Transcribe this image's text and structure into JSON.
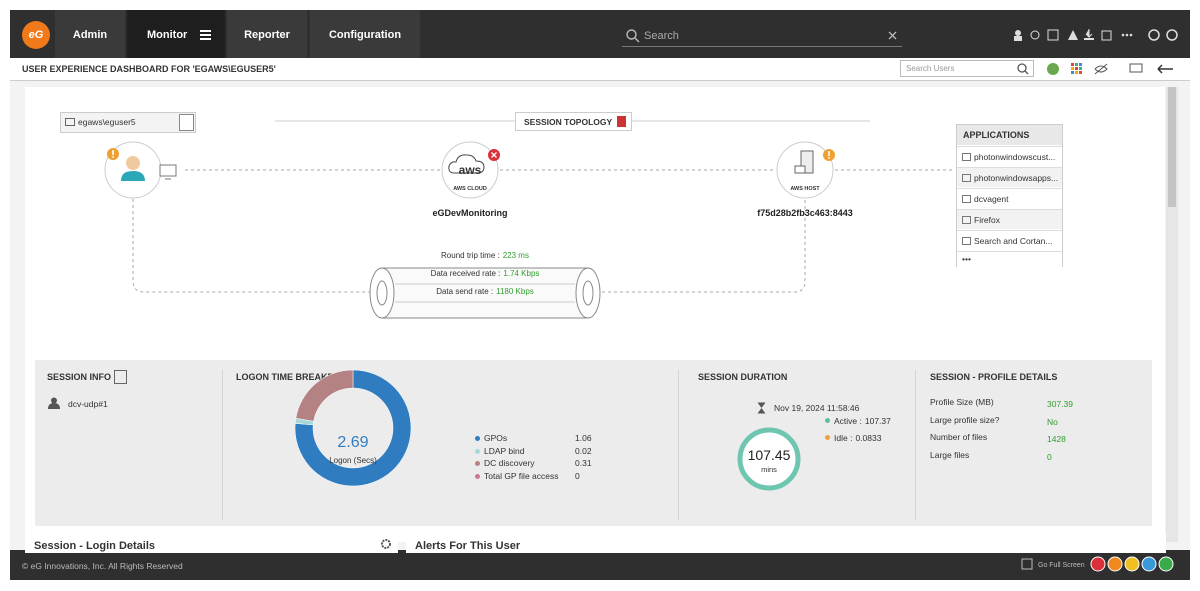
{
  "nav": {
    "logo": "eG",
    "tabs": [
      "Admin",
      "Monitor",
      "Reporter",
      "Configuration"
    ],
    "search_placeholder": "Search"
  },
  "header": {
    "title": "USER EXPERIENCE DASHBOARD FOR 'EGAWS\\EGUSER5'",
    "search_placeholder": "Search Users"
  },
  "topology": {
    "user": "egaws\\eguser5",
    "title": "SESSION TOPOLOGY",
    "cloud": {
      "logo": "aws",
      "badge": "AWS CLOUD",
      "label": "eGDevMonitoring"
    },
    "host": {
      "badge": "AWS HOST",
      "label": "f75d28b2fb3c463:8443"
    },
    "metrics": [
      {
        "label": "Round trip time :",
        "value": "223 ms"
      },
      {
        "label": "Data received rate :",
        "value": "1.74 Kbps"
      },
      {
        "label": "Data send rate :",
        "value": "1180 Kbps"
      }
    ]
  },
  "applications": {
    "title": "APPLICATIONS",
    "items": [
      "photonwindowscust...",
      "photonwindowsapps...",
      "dcvagent",
      "Firefox",
      "Search and Cortan..."
    ],
    "more": "•••"
  },
  "session_info": {
    "title": "SESSION INFO",
    "session": "dcv-udp#1"
  },
  "logon": {
    "title": "LOGON TIME BREAKDOWN",
    "total": 2.69,
    "total_label": "Logon (Secs)",
    "items": [
      {
        "name": "GPOs",
        "value": 1.06,
        "color": "#2f7dc0"
      },
      {
        "name": "LDAP bind",
        "value": 0.02,
        "color": "#a6d8d8"
      },
      {
        "name": "DC discovery",
        "value": 0.31,
        "color": "#b48283"
      },
      {
        "name": "Total GP file access",
        "value": 0,
        "color": "#c9798f"
      }
    ]
  },
  "duration": {
    "title": "SESSION DURATION",
    "start": "Nov 19, 2024 11:58:46",
    "total": 107.45,
    "unit": "mins",
    "items": [
      {
        "label": "Active :",
        "value": 107.37,
        "color": "#5bbfa6"
      },
      {
        "label": "Idle :",
        "value": 0.0833,
        "color": "#f0a040"
      }
    ]
  },
  "profile": {
    "title": "SESSION - PROFILE DETAILS",
    "rows": [
      {
        "label": "Profile Size (MB)",
        "value": "307.39"
      },
      {
        "label": "Large profile size?",
        "value": "No"
      },
      {
        "label": "Number of files",
        "value": "1428"
      },
      {
        "label": "Large files",
        "value": "0"
      }
    ]
  },
  "panels": [
    "Session - Login Details",
    "Alerts For This User"
  ],
  "footer": {
    "copyright": "© eG Innovations, Inc. All Rights Reserved",
    "fullscreen": "Go Full Screen"
  }
}
